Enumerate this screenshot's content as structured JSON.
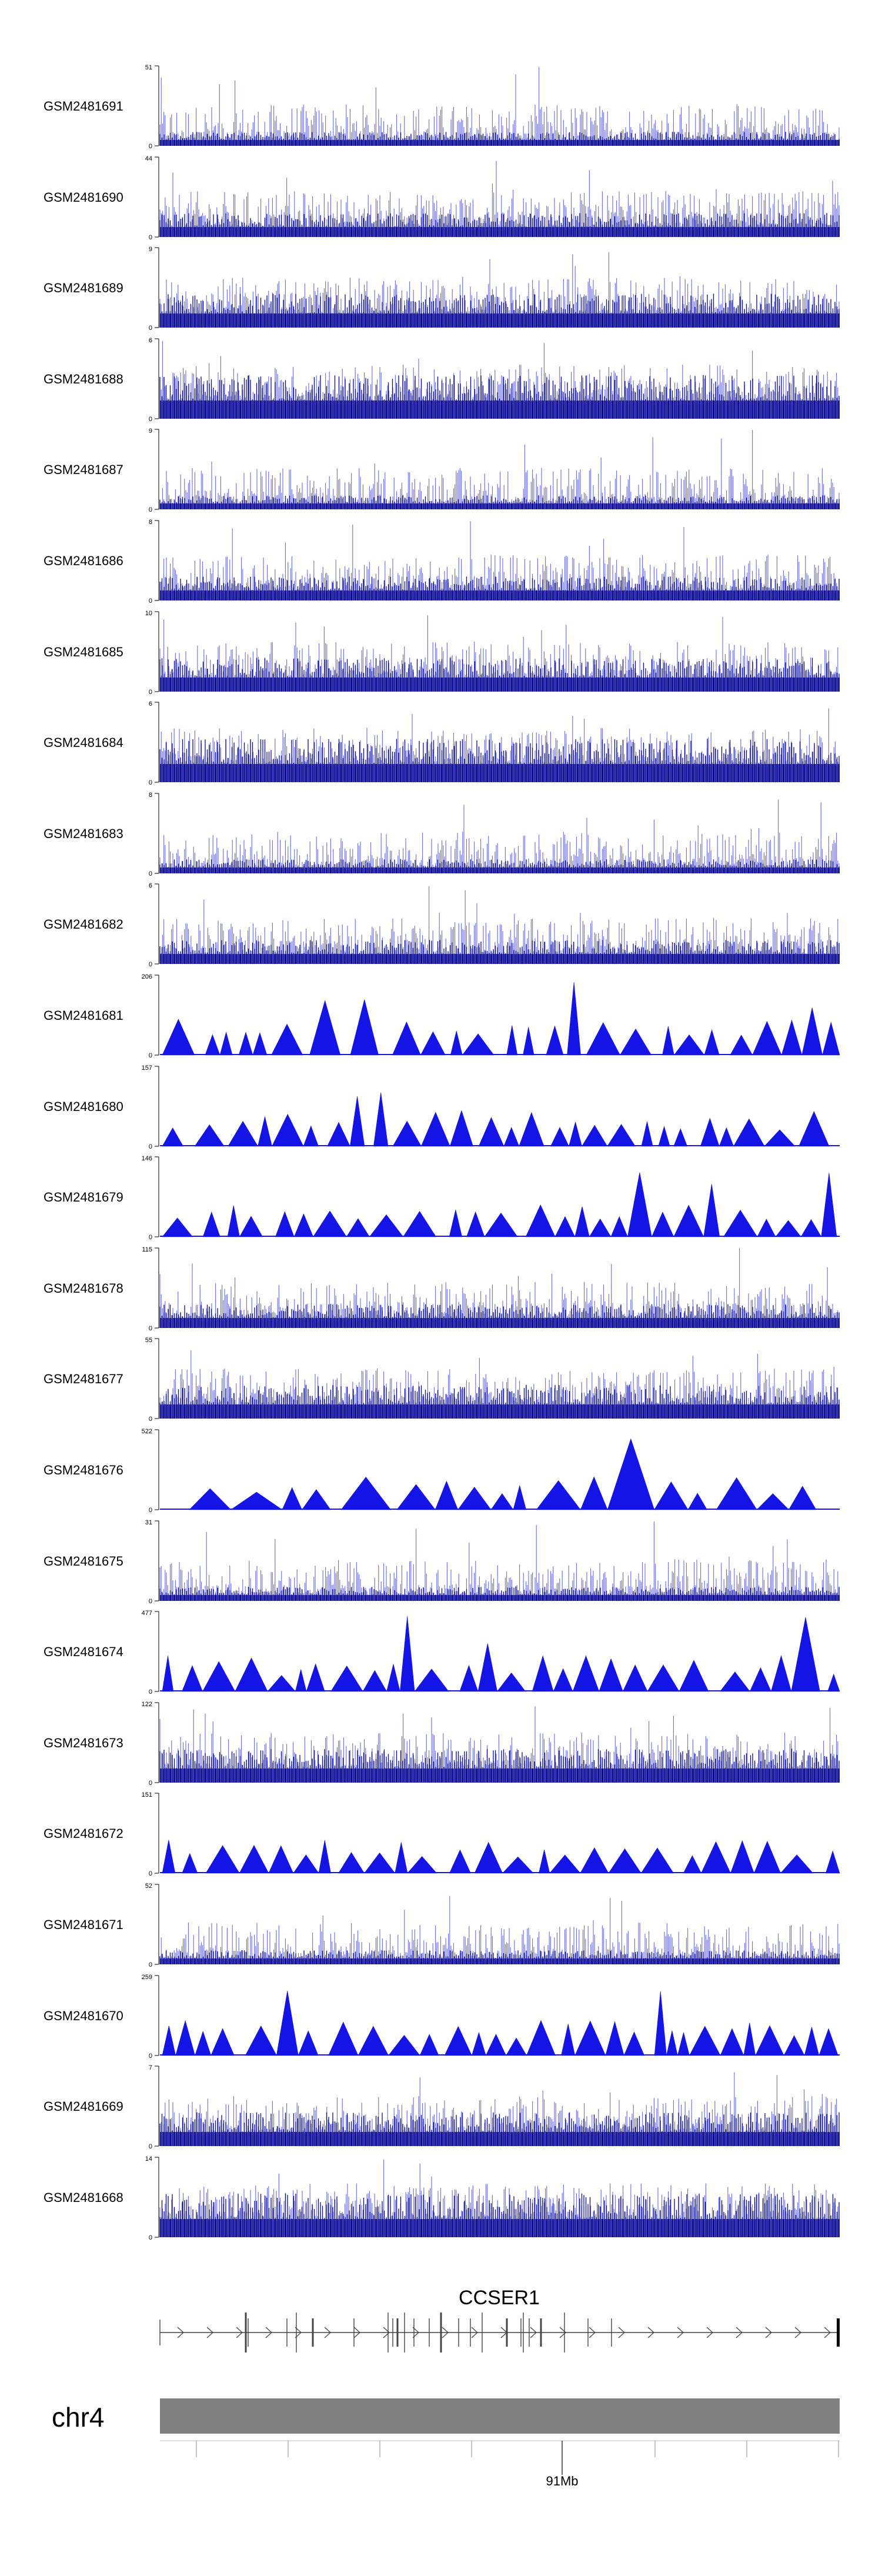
{
  "chart_data": {
    "type": "genome-browser-tracks",
    "title": "",
    "chromosome": "chr4",
    "axis_label": "91Mb",
    "gene": {
      "name": "CCSER1",
      "strand": "+"
    },
    "tracks": [
      {
        "name": "GSM2481691",
        "ymin": 0,
        "ymax": 51,
        "style": "bars"
      },
      {
        "name": "GSM2481690",
        "ymin": 0,
        "ymax": 44,
        "style": "bars"
      },
      {
        "name": "GSM2481689",
        "ymin": 0,
        "ymax": 9,
        "style": "bars"
      },
      {
        "name": "GSM2481688",
        "ymin": 0,
        "ymax": 6,
        "style": "bars"
      },
      {
        "name": "GSM2481687",
        "ymin": 0,
        "ymax": 9,
        "style": "bars"
      },
      {
        "name": "GSM2481686",
        "ymin": 0,
        "ymax": 8,
        "style": "bars"
      },
      {
        "name": "GSM2481685",
        "ymin": 0,
        "ymax": 10,
        "style": "bars"
      },
      {
        "name": "GSM2481684",
        "ymin": 0,
        "ymax": 6,
        "style": "bars"
      },
      {
        "name": "GSM2481683",
        "ymin": 0,
        "ymax": 8,
        "style": "bars"
      },
      {
        "name": "GSM2481682",
        "ymin": 0,
        "ymax": 6,
        "style": "bars"
      },
      {
        "name": "GSM2481681",
        "ymin": 0,
        "ymax": 206,
        "style": "peaks"
      },
      {
        "name": "GSM2481680",
        "ymin": 0,
        "ymax": 157,
        "style": "peaks"
      },
      {
        "name": "GSM2481679",
        "ymin": 0,
        "ymax": 146,
        "style": "peaks"
      },
      {
        "name": "GSM2481678",
        "ymin": 0,
        "ymax": 115,
        "style": "bars"
      },
      {
        "name": "GSM2481677",
        "ymin": 0,
        "ymax": 55,
        "style": "bars"
      },
      {
        "name": "GSM2481676",
        "ymin": 0,
        "ymax": 522,
        "style": "peaks"
      },
      {
        "name": "GSM2481675",
        "ymin": 0,
        "ymax": 31,
        "style": "bars"
      },
      {
        "name": "GSM2481674",
        "ymin": 0,
        "ymax": 477,
        "style": "peaks"
      },
      {
        "name": "GSM2481673",
        "ymin": 0,
        "ymax": 122,
        "style": "bars"
      },
      {
        "name": "GSM2481672",
        "ymin": 0,
        "ymax": 151,
        "style": "peaks"
      },
      {
        "name": "GSM2481671",
        "ymin": 0,
        "ymax": 52,
        "style": "bars"
      },
      {
        "name": "GSM2481670",
        "ymin": 0,
        "ymax": 259,
        "style": "peaks"
      },
      {
        "name": "GSM2481669",
        "ymin": 0,
        "ymax": 7,
        "style": "bars"
      },
      {
        "name": "GSM2481668",
        "ymin": 0,
        "ymax": 14,
        "style": "bars"
      }
    ]
  },
  "colors": {
    "signal_dark": "#0a0a8c",
    "signal_light": "#6a6ad8",
    "peak_fill": "#1414e6",
    "axis": "#000000",
    "ideogram": "#808080",
    "gene": "#444444"
  }
}
